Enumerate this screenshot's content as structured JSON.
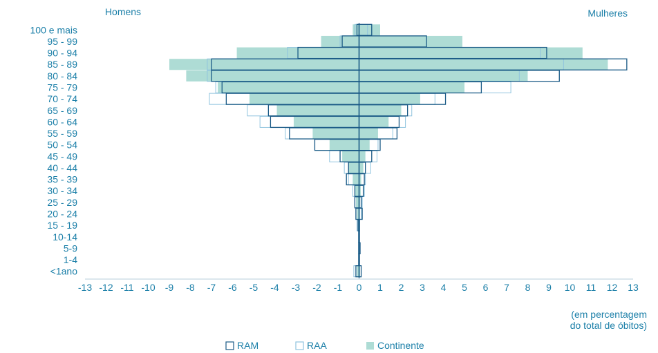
{
  "colors": {
    "text": "#1b7fa8",
    "ram": "#1a5a86",
    "raa": "#8fc3de",
    "continente": "#aedcd5",
    "axis": "#1a5a86"
  },
  "chart_data": {
    "type": "bar",
    "orientation": "horizontal",
    "layout": "population-pyramid",
    "title": "",
    "left_label": "Homens",
    "right_label": "Mulheres",
    "xlabel_lines": [
      "(em percentagem",
      "do total de óbitos)"
    ],
    "xlim": [
      -13,
      13
    ],
    "xticks": [
      -13,
      -12,
      -11,
      -10,
      -9,
      -8,
      -7,
      -6,
      -5,
      -4,
      -3,
      -2,
      -1,
      0,
      1,
      2,
      3,
      4,
      5,
      6,
      7,
      8,
      9,
      10,
      11,
      12,
      13
    ],
    "xtick_labels": [
      "-13",
      "-12",
      "-11",
      "-10",
      "-9",
      "-8",
      "-7",
      "-6",
      "-5",
      "-4",
      "-3",
      "-2",
      "-1",
      "0",
      "1",
      "2",
      "3",
      "4",
      "5",
      "6",
      "7",
      "8",
      "9",
      "10",
      "11",
      "12",
      "13"
    ],
    "categories": [
      "100 e mais",
      "95 - 99",
      "90 - 94",
      "85 - 89",
      "80 - 84",
      "75 - 79",
      "70 - 74",
      "65 - 69",
      "60 - 64",
      "55 - 59",
      "50 - 54",
      "45 - 49",
      "40 - 44",
      "35 - 39",
      "30 - 34",
      "25 - 29",
      "20 - 24",
      "15 - 19",
      "10-14",
      "5-9",
      "1-4",
      "<1ano"
    ],
    "legend": {
      "position": "bottom",
      "items": [
        {
          "key": "ram",
          "label": "RAM"
        },
        {
          "key": "raa",
          "label": "RAA"
        },
        {
          "key": "continente",
          "label": "Continente"
        }
      ]
    },
    "series": [
      {
        "key": "continente",
        "name": "Continente",
        "style": "fill",
        "men": [
          -0.3,
          -1.8,
          -5.8,
          -9.0,
          -8.2,
          -6.7,
          -5.2,
          -3.9,
          -3.1,
          -2.2,
          -1.4,
          -0.8,
          -0.5,
          -0.3,
          -0.2,
          -0.15,
          -0.1,
          -0.05,
          -0.02,
          -0.02,
          -0.02,
          -0.1
        ],
        "women": [
          1.0,
          4.9,
          10.6,
          11.8,
          8.0,
          5.0,
          2.9,
          2.0,
          1.4,
          0.9,
          0.5,
          0.3,
          0.2,
          0.1,
          0.08,
          0.05,
          0.04,
          0.02,
          0.01,
          0.01,
          0.01,
          0.05
        ]
      },
      {
        "key": "raa",
        "name": "RAA",
        "style": "outline",
        "men": [
          -0.2,
          -0.9,
          -3.4,
          -7.2,
          -7.2,
          -6.8,
          -7.1,
          -5.3,
          -4.7,
          -3.5,
          -2.1,
          -1.4,
          -0.7,
          -0.5,
          -0.3,
          -0.2,
          -0.15,
          -0.1,
          -0.02,
          -0.02,
          -0.02,
          -0.25
        ],
        "women": [
          0.4,
          3.2,
          8.6,
          9.7,
          7.6,
          7.2,
          3.6,
          2.5,
          2.2,
          1.6,
          0.9,
          0.85,
          0.55,
          0.3,
          0.25,
          0.15,
          0.1,
          0.03,
          0.01,
          0.01,
          0.01,
          0.1
        ]
      },
      {
        "key": "ram",
        "name": "RAM",
        "style": "outline",
        "men": [
          -0.1,
          -0.8,
          -2.9,
          -7.0,
          -7.0,
          -6.5,
          -6.3,
          -4.3,
          -4.2,
          -3.3,
          -2.1,
          -0.9,
          -0.5,
          -0.6,
          -0.2,
          -0.2,
          -0.15,
          -0.05,
          -0.02,
          -0.02,
          -0.02,
          -0.15
        ],
        "women": [
          0.6,
          3.2,
          8.9,
          12.7,
          9.5,
          5.8,
          4.1,
          2.3,
          1.9,
          1.8,
          1.0,
          0.6,
          0.3,
          0.25,
          0.2,
          0.1,
          0.15,
          0.02,
          0.01,
          0.05,
          0.01,
          0.1
        ]
      }
    ]
  }
}
